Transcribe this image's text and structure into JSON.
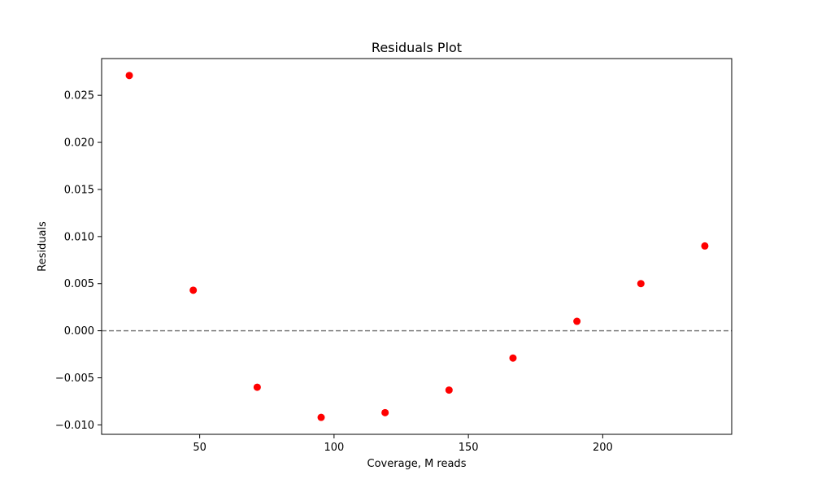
{
  "chart_data": {
    "type": "scatter",
    "title": "Residuals Plot",
    "xlabel": "Coverage, M reads",
    "ylabel": "Residuals",
    "xlim": [
      13.5,
      248
    ],
    "ylim": [
      -0.011,
      0.0289
    ],
    "xticks": [
      50,
      100,
      150,
      200
    ],
    "yticks": [
      -0.01,
      -0.005,
      0.0,
      0.005,
      0.01,
      0.015,
      0.02,
      0.025
    ],
    "xtick_labels": [
      "50",
      "100",
      "150",
      "200"
    ],
    "ytick_labels": [
      "−0.010",
      "−0.005",
      "0.000",
      "0.005",
      "0.010",
      "0.015",
      "0.020",
      "0.025"
    ],
    "reference_line": {
      "y": 0,
      "style": "dashed",
      "color": "#808080"
    },
    "grid": false,
    "marker_color": "#ff0000",
    "points": [
      {
        "x": 23.8,
        "y": 0.0271
      },
      {
        "x": 47.6,
        "y": 0.0043
      },
      {
        "x": 71.4,
        "y": -0.006
      },
      {
        "x": 95.2,
        "y": -0.0092
      },
      {
        "x": 119.0,
        "y": -0.0087
      },
      {
        "x": 142.8,
        "y": -0.0063
      },
      {
        "x": 166.6,
        "y": -0.0029
      },
      {
        "x": 190.4,
        "y": 0.001
      },
      {
        "x": 214.2,
        "y": 0.005
      },
      {
        "x": 238.0,
        "y": 0.009
      }
    ]
  }
}
